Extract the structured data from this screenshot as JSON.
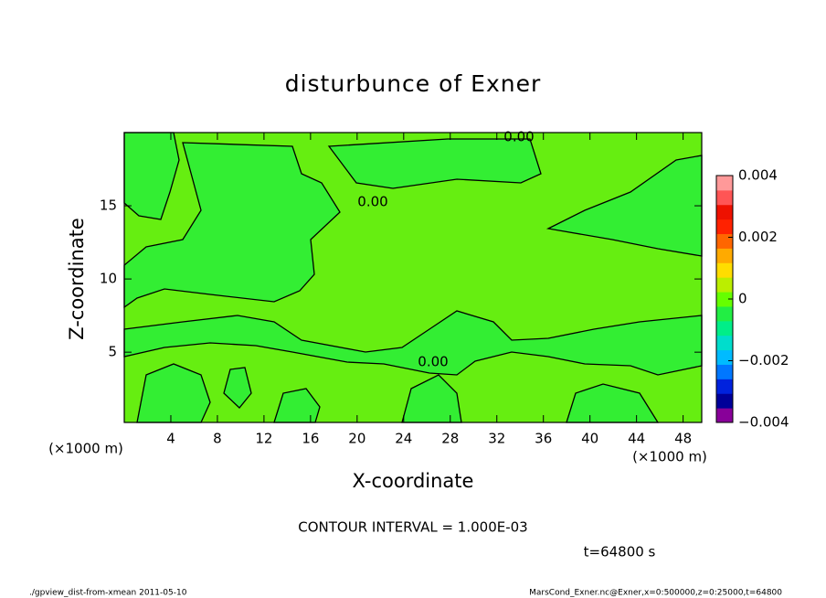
{
  "chart_data": {
    "type": "contour",
    "title": "disturbunce of Exner",
    "x_label": "X-coordinate",
    "y_label": "Z-coordinate",
    "x_unit": "(×1000 m)",
    "x_unit_right": "(×1000 m)",
    "xlim": [
      0,
      49.6
    ],
    "xticks": [
      4,
      8,
      12,
      16,
      20,
      24,
      28,
      32,
      36,
      40,
      44,
      48
    ],
    "ylim": [
      0.2,
      20
    ],
    "yticks": [
      5,
      10,
      15
    ],
    "clim": [
      -0.004,
      0.004
    ],
    "cticks": [
      0.004,
      0.002,
      0,
      {
        "value": -0.002,
        "label": "−0.002"
      },
      {
        "value": -0.004,
        "label": "−0.004"
      }
    ],
    "colorbar_colors": [
      "#880099",
      "#000099",
      "#0022dd",
      "#0077ff",
      "#00bbff",
      "#00ddcc",
      "#00ee88",
      "#22ee44",
      "#66ff00",
      "#bbee00",
      "#ffdd00",
      "#ffaa00",
      "#ff6600",
      "#ff2200",
      "#ee1100",
      "#ff5555",
      "#ff9999"
    ],
    "contour_labels": [
      "0.00",
      "0.00",
      "0.00"
    ],
    "contour_interval": "CONTOUR INTERVAL = 1.000E-03",
    "time_label": "t=64800 s",
    "footer_left": "./gpview_dist-from-xmean  2011-05-10",
    "footer_right": "MarsCond_Exner.nc@Exner,x=0:500000,z=0:25000,t=64800"
  }
}
